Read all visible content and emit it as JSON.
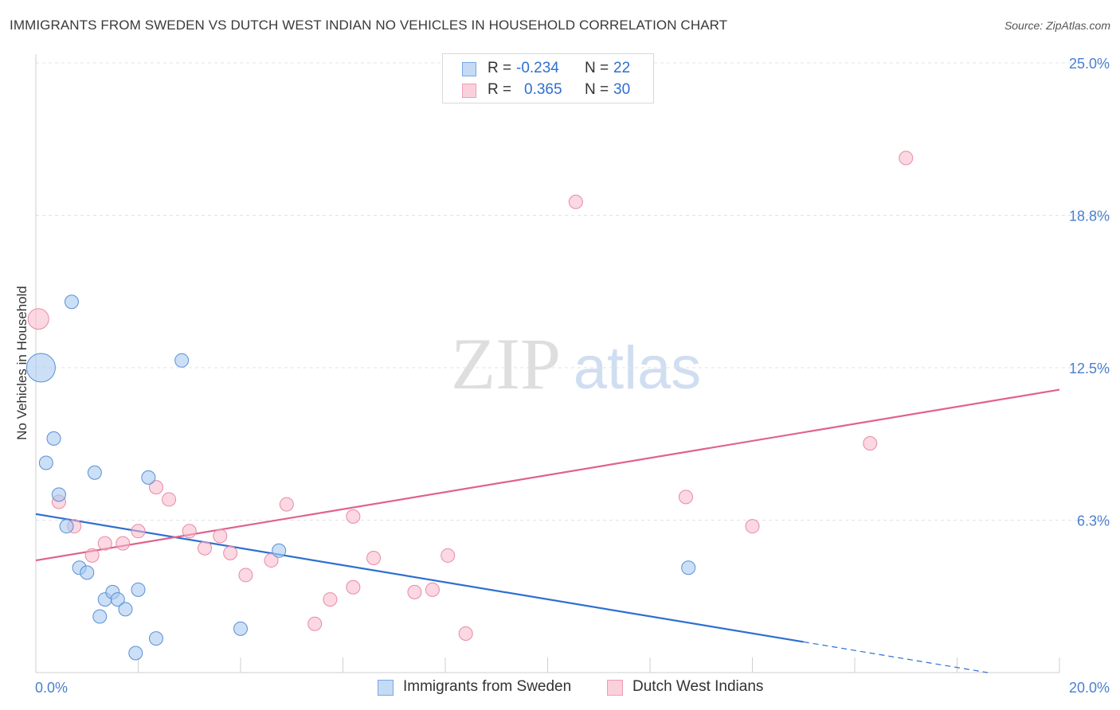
{
  "header": {
    "title": "IMMIGRANTS FROM SWEDEN VS DUTCH WEST INDIAN NO VEHICLES IN HOUSEHOLD CORRELATION CHART",
    "source": "Source: ZipAtlas.com"
  },
  "watermark": {
    "zip": "ZIP",
    "atlas": "atlas"
  },
  "legend": {
    "r_label": "R =",
    "n_label": "N =",
    "rows": [
      {
        "r": "-0.234",
        "n": "22",
        "color": "#a9c9f0"
      },
      {
        "r": "0.365",
        "n": "30",
        "color": "#f7b8cb"
      }
    ]
  },
  "chart_data": {
    "type": "scatter",
    "title": "IMMIGRANTS FROM SWEDEN VS DUTCH WEST INDIAN NO VEHICLES IN HOUSEHOLD CORRELATION CHART",
    "ylabel": "No Vehicles in Household",
    "xlabel": "",
    "xlim": [
      0,
      20
    ],
    "ylim": [
      0,
      25
    ],
    "x_ticks_labels": [
      "0.0%",
      "20.0%"
    ],
    "y_ticks": [
      6.25,
      12.5,
      18.75,
      25.0
    ],
    "y_ticks_labels": [
      "6.3%",
      "12.5%",
      "18.8%",
      "25.0%"
    ],
    "grid": "horizontal dashed",
    "legend_position": "top-center",
    "colors": {
      "sweden_fill": "#a9c9f0",
      "sweden_stroke": "#5b8fd6",
      "sweden_line": "#2e6fd1",
      "dwi_fill": "#f7b8cb",
      "dwi_stroke": "#e88aa7",
      "dwi_line": "#e0628b",
      "tick_label": "#4a7fcf"
    },
    "series": [
      {
        "name": "Immigrants from Sweden",
        "r": -0.234,
        "n": 22,
        "trend": {
          "x_start": 0,
          "y_start": 6.5,
          "x_end_solid": 15.0,
          "x_end_dashed": 18.6,
          "y_end": 0.0
        },
        "points": [
          {
            "x": 0.1,
            "y": 12.5,
            "size": "large"
          },
          {
            "x": 0.2,
            "y": 8.6
          },
          {
            "x": 0.35,
            "y": 9.6
          },
          {
            "x": 0.45,
            "y": 7.3
          },
          {
            "x": 0.6,
            "y": 6.0
          },
          {
            "x": 0.7,
            "y": 15.2
          },
          {
            "x": 0.85,
            "y": 4.3
          },
          {
            "x": 1.0,
            "y": 4.1
          },
          {
            "x": 1.15,
            "y": 8.2
          },
          {
            "x": 1.25,
            "y": 2.3
          },
          {
            "x": 1.35,
            "y": 3.0
          },
          {
            "x": 1.5,
            "y": 3.3
          },
          {
            "x": 1.6,
            "y": 3.0
          },
          {
            "x": 1.75,
            "y": 2.6
          },
          {
            "x": 1.95,
            "y": 0.8
          },
          {
            "x": 2.0,
            "y": 3.4
          },
          {
            "x": 2.2,
            "y": 8.0
          },
          {
            "x": 2.35,
            "y": 1.4
          },
          {
            "x": 2.85,
            "y": 12.8
          },
          {
            "x": 4.0,
            "y": 1.8
          },
          {
            "x": 4.75,
            "y": 5.0
          },
          {
            "x": 12.75,
            "y": 4.3
          }
        ]
      },
      {
        "name": "Dutch West Indians",
        "r": 0.365,
        "n": 30,
        "trend": {
          "x_start": 0,
          "y_start": 4.6,
          "x_end": 20,
          "y_end": 11.6
        },
        "points": [
          {
            "x": 0.05,
            "y": 14.5,
            "size": "large"
          },
          {
            "x": 0.45,
            "y": 7.0
          },
          {
            "x": 0.75,
            "y": 6.0
          },
          {
            "x": 1.1,
            "y": 4.8
          },
          {
            "x": 1.35,
            "y": 5.3
          },
          {
            "x": 1.7,
            "y": 5.3
          },
          {
            "x": 2.0,
            "y": 5.8
          },
          {
            "x": 2.35,
            "y": 7.6
          },
          {
            "x": 2.6,
            "y": 7.1
          },
          {
            "x": 3.0,
            "y": 5.8
          },
          {
            "x": 3.3,
            "y": 5.1
          },
          {
            "x": 3.6,
            "y": 5.6
          },
          {
            "x": 3.8,
            "y": 4.9
          },
          {
            "x": 4.1,
            "y": 4.0
          },
          {
            "x": 4.6,
            "y": 4.6
          },
          {
            "x": 4.9,
            "y": 6.9
          },
          {
            "x": 5.45,
            "y": 2.0
          },
          {
            "x": 5.75,
            "y": 3.0
          },
          {
            "x": 6.2,
            "y": 6.4
          },
          {
            "x": 6.2,
            "y": 3.5
          },
          {
            "x": 6.6,
            "y": 4.7
          },
          {
            "x": 7.4,
            "y": 3.3
          },
          {
            "x": 7.75,
            "y": 3.4
          },
          {
            "x": 8.05,
            "y": 4.8
          },
          {
            "x": 8.4,
            "y": 1.6
          },
          {
            "x": 10.55,
            "y": 19.3
          },
          {
            "x": 12.7,
            "y": 7.2
          },
          {
            "x": 14.0,
            "y": 6.0
          },
          {
            "x": 16.3,
            "y": 9.4
          },
          {
            "x": 17.0,
            "y": 21.1
          }
        ]
      }
    ]
  },
  "bottom_legend": {
    "items": [
      {
        "label": "Immigrants from Sweden"
      },
      {
        "label": "Dutch West Indians"
      }
    ]
  }
}
